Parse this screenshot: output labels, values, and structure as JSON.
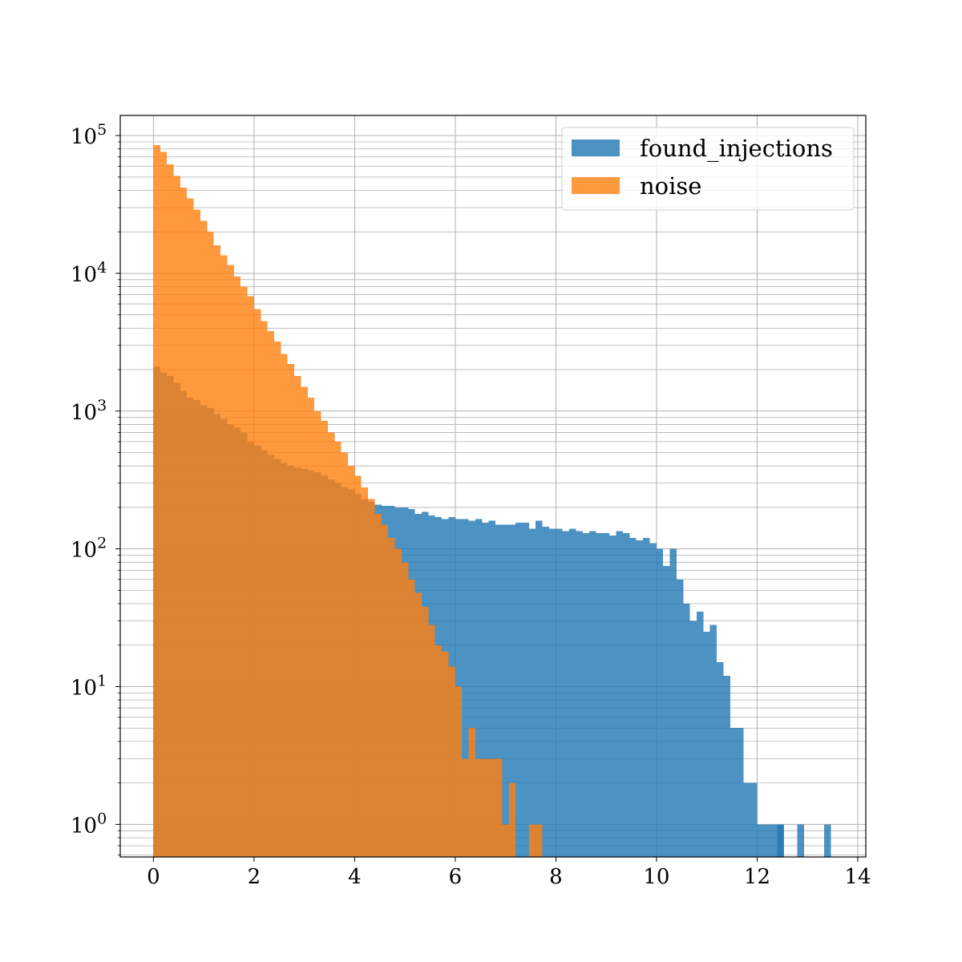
{
  "chart_data": {
    "type": "bar",
    "subtype": "histogram",
    "title": "",
    "xlabel": "",
    "ylabel": "",
    "xlim": [
      -0.66,
      14.16
    ],
    "ylim": [
      0.58,
      140000
    ],
    "yscale": "log",
    "grid": true,
    "grid_minor": true,
    "legend_position": "top-right",
    "bin_width": 0.1333,
    "x_ticks": [
      0,
      2,
      4,
      6,
      8,
      10,
      12,
      14
    ],
    "x_tick_labels": [
      "0",
      "2",
      "4",
      "6",
      "8",
      "10",
      "12",
      "14"
    ],
    "y_ticks": [
      1,
      10,
      100,
      1000,
      10000,
      100000
    ],
    "y_tick_bases": [
      "10",
      "10",
      "10",
      "10",
      "10",
      "10"
    ],
    "y_tick_exps": [
      "0",
      "1",
      "2",
      "3",
      "4",
      "5"
    ],
    "series": [
      {
        "name": "found_injections",
        "color": "#1f77b4",
        "alpha": 0.8,
        "x_start": 0.0,
        "values": [
          2100,
          1900,
          1800,
          1600,
          1400,
          1250,
          1200,
          1100,
          1050,
          950,
          880,
          800,
          760,
          700,
          600,
          560,
          520,
          480,
          450,
          420,
          400,
          390,
          380,
          370,
          360,
          340,
          320,
          300,
          280,
          270,
          250,
          230,
          220,
          210,
          205,
          205,
          200,
          200,
          195,
          180,
          185,
          175,
          170,
          165,
          170,
          165,
          165,
          160,
          165,
          155,
          160,
          150,
          150,
          150,
          155,
          155,
          140,
          160,
          145,
          140,
          140,
          135,
          140,
          135,
          130,
          135,
          130,
          130,
          125,
          135,
          130,
          120,
          115,
          120,
          110,
          100,
          75,
          100,
          60,
          40,
          30,
          35,
          25,
          28,
          15,
          12,
          5,
          5,
          2,
          2,
          1,
          1,
          1,
          1
        ],
        "extra_bins": [
          [
            12.4,
            1
          ],
          [
            12.8,
            1
          ],
          [
            13.33,
            1
          ]
        ]
      },
      {
        "name": "noise",
        "color": "#ff7f0e",
        "alpha": 0.8,
        "x_start": 0.0,
        "values": [
          85000,
          76000,
          62000,
          51000,
          42000,
          35000,
          29000,
          24000,
          20000,
          16000,
          13500,
          11500,
          9500,
          8000,
          6800,
          5500,
          4500,
          3800,
          3200,
          2600,
          2200,
          1800,
          1500,
          1250,
          1000,
          850,
          700,
          600,
          500,
          400,
          340,
          280,
          230,
          180,
          150,
          120,
          100,
          80,
          60,
          48,
          38,
          28,
          20,
          18,
          14,
          10,
          3,
          5,
          3,
          3,
          3,
          3,
          1,
          2,
          0,
          0,
          1,
          1
        ]
      }
    ]
  },
  "legend": {
    "entries": [
      {
        "label": "found_injections",
        "color": "#1f77b4"
      },
      {
        "label": "noise",
        "color": "#ff7f0e"
      }
    ]
  }
}
